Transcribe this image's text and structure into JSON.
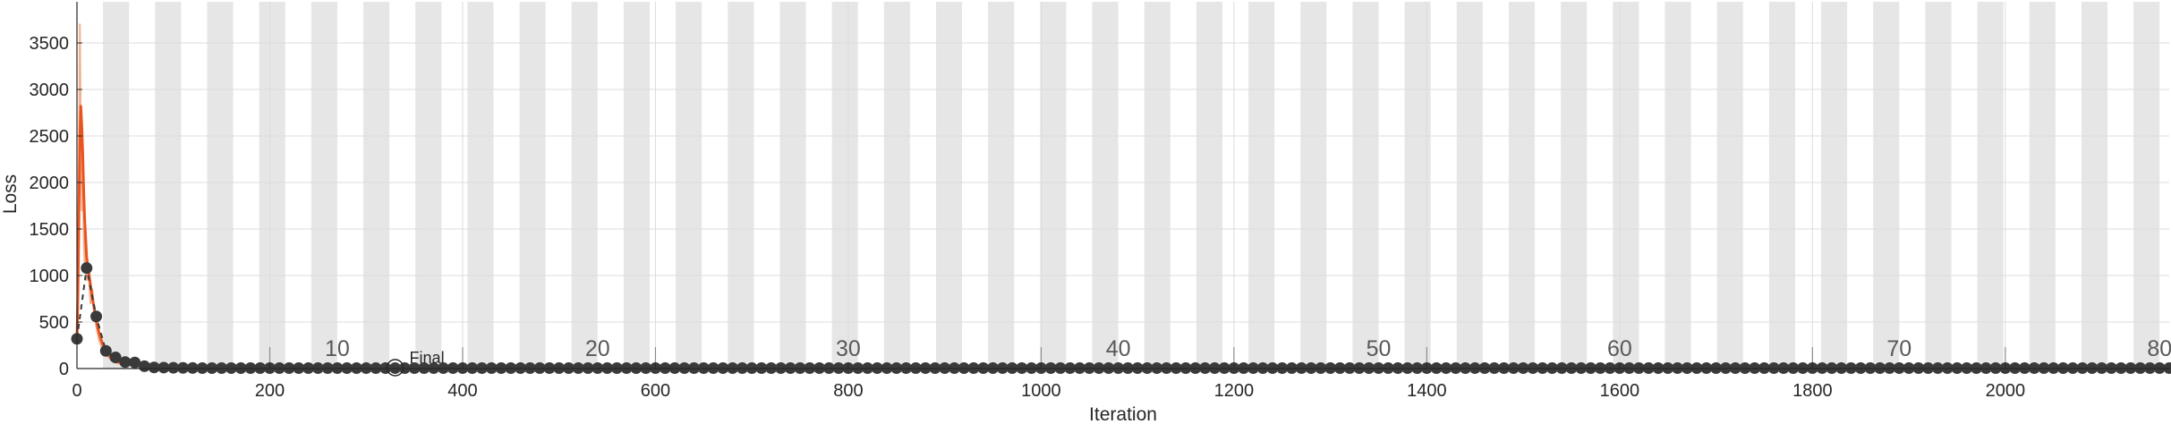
{
  "chart_data": {
    "type": "line",
    "xlabel": "Iteration",
    "ylabel": "Loss",
    "xlim": [
      0,
      2170
    ],
    "ylim": [
      0,
      3750
    ],
    "x_ticks": [
      0,
      200,
      400,
      600,
      800,
      1000,
      1200,
      1400,
      1600,
      1800,
      2000
    ],
    "y_ticks": [
      0,
      500,
      1000,
      1500,
      2000,
      2500,
      3000,
      3500
    ],
    "grid": true,
    "epoch_band_width": 27,
    "epoch_band_starts": [
      27,
      81,
      135,
      189,
      243,
      297,
      351,
      405,
      459,
      513,
      567,
      621,
      675,
      729,
      783,
      837,
      891,
      945,
      999,
      1053,
      1107,
      1161,
      1215,
      1269,
      1323,
      1377,
      1431,
      1485,
      1539,
      1593,
      1647,
      1701,
      1755,
      1809,
      1863,
      1917,
      1971,
      2025,
      2079,
      2133
    ],
    "epoch_markers": [
      {
        "x": 200,
        "label": ""
      },
      {
        "x": 270,
        "label": "10"
      },
      {
        "x": 400,
        "label": ""
      },
      {
        "x": 540,
        "label": "20"
      },
      {
        "x": 600,
        "label": ""
      },
      {
        "x": 800,
        "label": "30"
      },
      {
        "x": 1000,
        "label": ""
      },
      {
        "x": 1080,
        "label": "40"
      },
      {
        "x": 1200,
        "label": ""
      },
      {
        "x": 1350,
        "label": "50"
      },
      {
        "x": 1400,
        "label": ""
      },
      {
        "x": 1600,
        "label": "60"
      },
      {
        "x": 1800,
        "label": ""
      },
      {
        "x": 1890,
        "label": "70"
      },
      {
        "x": 2000,
        "label": ""
      },
      {
        "x": 2160,
        "label": "80"
      }
    ],
    "annotation": {
      "x": 330,
      "y": 0,
      "label": "Final"
    },
    "series": [
      {
        "role": "training-loss-raw",
        "color": "#f4b08f",
        "x": [
          0,
          1,
          2,
          3,
          4,
          5,
          6,
          7,
          8,
          9,
          10,
          12,
          14,
          16,
          18,
          20,
          23,
          26,
          30,
          35,
          40,
          50,
          60,
          80,
          100,
          150,
          200,
          300,
          500,
          1000,
          1500,
          2170
        ],
        "y": [
          300,
          900,
          2000,
          3700,
          2600,
          1700,
          2300,
          1400,
          1100,
          1500,
          950,
          1050,
          700,
          850,
          600,
          450,
          300,
          220,
          150,
          90,
          60,
          40,
          30,
          20,
          15,
          10,
          8,
          6,
          4,
          3,
          2,
          2
        ]
      },
      {
        "role": "training-loss-smoothed",
        "color": "#e8541f",
        "x": [
          0,
          1,
          2,
          3,
          4,
          5,
          6,
          7,
          8,
          9,
          10,
          12,
          14,
          16,
          18,
          20,
          23,
          26,
          30,
          35,
          40,
          50,
          60,
          80,
          100,
          150,
          200,
          300,
          500,
          1000,
          1500,
          2170
        ],
        "y": [
          300,
          800,
          1600,
          2500,
          2820,
          2600,
          2300,
          1900,
          1600,
          1400,
          1200,
          1050,
          900,
          760,
          640,
          520,
          380,
          280,
          190,
          120,
          80,
          50,
          35,
          22,
          16,
          11,
          8,
          6,
          4,
          3,
          2,
          2
        ]
      },
      {
        "role": "validation-loss",
        "color": "#3a3a3a",
        "dashed": true,
        "x": [
          0,
          10,
          20,
          30,
          40,
          50,
          60,
          70,
          80,
          90,
          100,
          110,
          120,
          130,
          140,
          150,
          160,
          170,
          180,
          190,
          200,
          210,
          220,
          230,
          240,
          250,
          260,
          270,
          280,
          290,
          300,
          310,
          320,
          330,
          340,
          350,
          360,
          370,
          380,
          390,
          400,
          410,
          420,
          430,
          440,
          450,
          460,
          470,
          480,
          490,
          500,
          510,
          520,
          530,
          540,
          550,
          560,
          570,
          580,
          590,
          600,
          610,
          620,
          630,
          640,
          650,
          660,
          670,
          680,
          690,
          700,
          710,
          720,
          730,
          740,
          750,
          760,
          770,
          780,
          790,
          800,
          810,
          820,
          830,
          840,
          850,
          860,
          870,
          880,
          890,
          900,
          910,
          920,
          930,
          940,
          950,
          960,
          970,
          980,
          990,
          1000,
          1010,
          1020,
          1030,
          1040,
          1050,
          1060,
          1070,
          1080,
          1090,
          1100,
          1110,
          1120,
          1130,
          1140,
          1150,
          1160,
          1170,
          1180,
          1190,
          1200,
          1210,
          1220,
          1230,
          1240,
          1250,
          1260,
          1270,
          1280,
          1290,
          1300,
          1310,
          1320,
          1330,
          1340,
          1350,
          1360,
          1370,
          1380,
          1390,
          1400,
          1410,
          1420,
          1430,
          1440,
          1450,
          1460,
          1470,
          1480,
          1490,
          1500,
          1510,
          1520,
          1530,
          1540,
          1550,
          1560,
          1570,
          1580,
          1590,
          1600,
          1610,
          1620,
          1630,
          1640,
          1650,
          1660,
          1670,
          1680,
          1690,
          1700,
          1710,
          1720,
          1730,
          1740,
          1750,
          1760,
          1770,
          1780,
          1790,
          1800,
          1810,
          1820,
          1830,
          1840,
          1850,
          1860,
          1870,
          1880,
          1890,
          1900,
          1910,
          1920,
          1930,
          1940,
          1950,
          1960,
          1970,
          1980,
          1990,
          2000,
          2010,
          2020,
          2030,
          2040,
          2050,
          2060,
          2070,
          2080,
          2090,
          2100,
          2110,
          2120,
          2130,
          2140,
          2150,
          2160,
          2170
        ],
        "y": [
          320,
          1080,
          560,
          190,
          120,
          70,
          65,
          25,
          12,
          10,
          8,
          7,
          6,
          5,
          5,
          5,
          5,
          5,
          5,
          5,
          5,
          5,
          5,
          5,
          5,
          5,
          5,
          5,
          5,
          5,
          5,
          5,
          5,
          5,
          5,
          5,
          5,
          5,
          5,
          5,
          5,
          5,
          5,
          5,
          5,
          5,
          5,
          5,
          5,
          5,
          5,
          5,
          5,
          5,
          5,
          5,
          5,
          5,
          5,
          5,
          5,
          5,
          5,
          5,
          5,
          5,
          5,
          5,
          5,
          5,
          5,
          5,
          5,
          5,
          5,
          5,
          5,
          5,
          5,
          5,
          5,
          5,
          5,
          5,
          5,
          5,
          5,
          5,
          5,
          5,
          5,
          5,
          5,
          5,
          5,
          5,
          5,
          5,
          5,
          5,
          5,
          5,
          5,
          5,
          5,
          5,
          5,
          5,
          5,
          5,
          5,
          5,
          5,
          5,
          5,
          5,
          5,
          5,
          5,
          5,
          5,
          5,
          5,
          5,
          5,
          5,
          5,
          5,
          5,
          5,
          5,
          5,
          5,
          5,
          5,
          5,
          5,
          5,
          5,
          5,
          5,
          5,
          5,
          5,
          5,
          5,
          5,
          5,
          5,
          5,
          5,
          5,
          5,
          5,
          5,
          5,
          5,
          5,
          5,
          5,
          5,
          5,
          5,
          5,
          5,
          5,
          5,
          5,
          5,
          5,
          5,
          5,
          5,
          5,
          5,
          5,
          5,
          5,
          5,
          5,
          5,
          5,
          5,
          5,
          5,
          5,
          5,
          5,
          5,
          5,
          5,
          5,
          5,
          5,
          5,
          5,
          5,
          5,
          5,
          5,
          5,
          5,
          5,
          5,
          5,
          5,
          5,
          5,
          5,
          5,
          5,
          5,
          5,
          5,
          5,
          5,
          5,
          5
        ]
      }
    ]
  },
  "colors": {
    "band": "#e6e6e6",
    "grid": "#dcdcdc",
    "axis": "#262626",
    "epoch_tick": "#8c8c8c",
    "final_marker": "#262626"
  }
}
